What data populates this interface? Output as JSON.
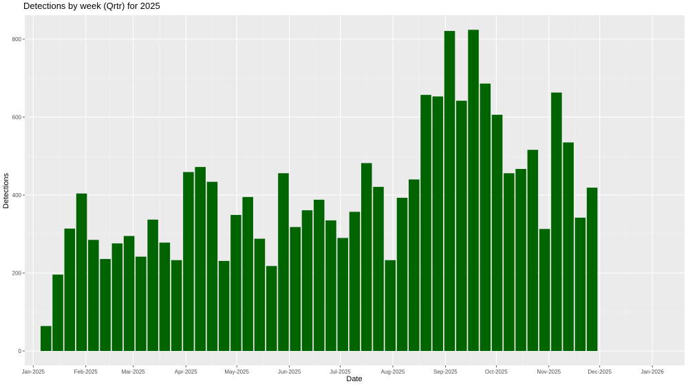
{
  "chart_data": {
    "type": "bar",
    "title": "Detections by week (Qrtr) for 2025",
    "xlabel": "Date",
    "ylabel": "Detections",
    "ylim": [
      0,
      850
    ],
    "y_ticks": [
      0,
      200,
      400,
      600,
      800
    ],
    "x_ticks": [
      "Jan-2025",
      "Feb-2025",
      "Mar-2025",
      "Apr-2025",
      "May-2025",
      "Jun-2025",
      "Jul-2025",
      "Aug-2025",
      "Sep-2025",
      "Oct-2025",
      "Nov-2025",
      "Dec-2025",
      "Jan-2026"
    ],
    "x_range": [
      "2024-12-27",
      "2026-01-20"
    ],
    "grid": true,
    "bar_color": "#006400",
    "panel_color": "#ebebeb",
    "week_starts": [
      "2025-01-05",
      "2025-01-12",
      "2025-01-19",
      "2025-01-26",
      "2025-02-02",
      "2025-02-09",
      "2025-02-16",
      "2025-02-23",
      "2025-03-02",
      "2025-03-09",
      "2025-03-16",
      "2025-03-23",
      "2025-03-30",
      "2025-04-06",
      "2025-04-13",
      "2025-04-20",
      "2025-04-27",
      "2025-05-04",
      "2025-05-11",
      "2025-05-18",
      "2025-05-25",
      "2025-06-01",
      "2025-06-08",
      "2025-06-15",
      "2025-06-22",
      "2025-06-29",
      "2025-07-06",
      "2025-07-13",
      "2025-07-20",
      "2025-07-27",
      "2025-08-03",
      "2025-08-10",
      "2025-08-17",
      "2025-08-24",
      "2025-08-31",
      "2025-09-07",
      "2025-09-14",
      "2025-09-21",
      "2025-09-28",
      "2025-10-05",
      "2025-10-12",
      "2025-10-19",
      "2025-10-26",
      "2025-11-02",
      "2025-11-09",
      "2025-11-16",
      "2025-11-23"
    ],
    "values": [
      64,
      196,
      314,
      404,
      285,
      236,
      276,
      295,
      242,
      337,
      278,
      233,
      459,
      472,
      434,
      231,
      349,
      395,
      288,
      218,
      456,
      318,
      361,
      388,
      335,
      290,
      357,
      482,
      421,
      233,
      393,
      440,
      657,
      653,
      821,
      642,
      824,
      686,
      606,
      456,
      467,
      516,
      313,
      663,
      535,
      342,
      419
    ]
  }
}
